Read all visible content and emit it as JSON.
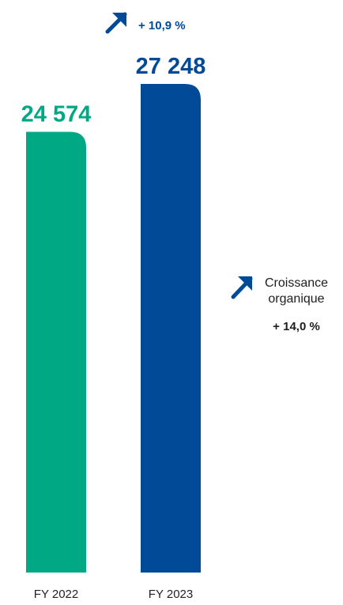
{
  "chart_data": {
    "type": "bar",
    "categories": [
      "FY 2022",
      "FY 2023"
    ],
    "values": [
      24574,
      27248
    ],
    "value_labels": [
      "24 574",
      "27 248"
    ],
    "bar_colors": [
      "#00a883",
      "#004a98"
    ],
    "yoy_growth_label": "+ 10,9 %",
    "ylim": [
      0,
      27248
    ],
    "title": "",
    "xlabel": "",
    "ylabel": ""
  },
  "organic_growth": {
    "title": "Croissance organique",
    "value": "+ 14,0 %"
  },
  "colors": {
    "green": "#00a883",
    "blue": "#004a98",
    "text": "#1d1d1d"
  },
  "icons": {
    "growth_arrow": "arrow-up-right-icon",
    "organic_arrow": "arrow-up-right-icon"
  }
}
